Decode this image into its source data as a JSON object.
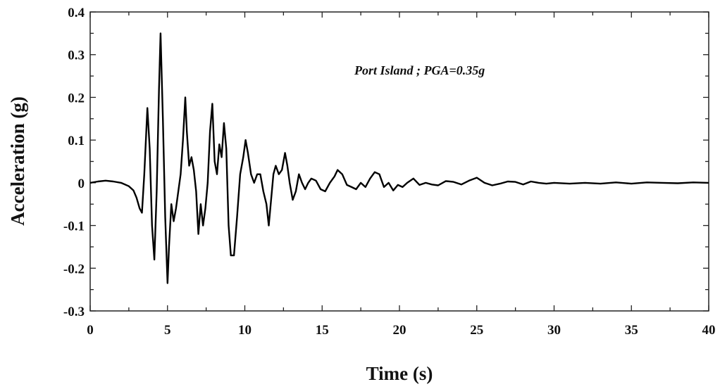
{
  "chart_data": {
    "type": "line",
    "title": "",
    "annotation": "Port Island ; PGA=0.35g",
    "xlabel": "Time (s)",
    "ylabel": "Acceleration (g)",
    "xlim": [
      0,
      40
    ],
    "ylim": [
      -0.3,
      0.4
    ],
    "xticks": [
      0,
      5,
      10,
      15,
      20,
      25,
      30,
      35,
      40
    ],
    "yticks": [
      -0.3,
      -0.2,
      -0.1,
      0,
      0.1,
      0.2,
      0.3,
      0.4
    ],
    "ytick_labels": [
      "-0.3",
      "-0.2",
      "-0.1",
      "0",
      "0.1",
      "0.2",
      "0.3",
      "0.4"
    ],
    "xtick_labels": [
      "0",
      "5",
      "10",
      "15",
      "20",
      "25",
      "30",
      "35",
      "40"
    ],
    "grid": false,
    "line_color": "#000000",
    "series": [
      {
        "x": [
          0,
          0.5,
          1.0,
          1.5,
          2.0,
          2.5,
          2.8,
          3.0,
          3.2,
          3.35,
          3.5,
          3.7,
          3.85,
          4.0,
          4.15,
          4.3,
          4.45,
          4.55,
          4.7,
          4.85,
          5.0,
          5.1,
          5.25,
          5.4,
          5.55,
          5.7,
          5.85,
          6.0,
          6.15,
          6.25,
          6.4,
          6.55,
          6.7,
          6.85,
          7.0,
          7.15,
          7.3,
          7.45,
          7.6,
          7.75,
          7.9,
          8.05,
          8.2,
          8.35,
          8.5,
          8.65,
          8.8,
          8.95,
          9.1,
          9.3,
          9.5,
          9.7,
          9.9,
          10.05,
          10.2,
          10.4,
          10.6,
          10.8,
          11.0,
          11.2,
          11.4,
          11.55,
          11.7,
          11.85,
          12.0,
          12.2,
          12.4,
          12.6,
          12.75,
          12.9,
          13.1,
          13.3,
          13.5,
          13.7,
          13.9,
          14.1,
          14.3,
          14.6,
          14.9,
          15.2,
          15.5,
          15.8,
          16.0,
          16.3,
          16.6,
          16.9,
          17.2,
          17.5,
          17.8,
          18.1,
          18.4,
          18.7,
          19.0,
          19.3,
          19.6,
          19.9,
          20.2,
          20.5,
          20.9,
          21.3,
          21.7,
          22.1,
          22.5,
          23.0,
          23.5,
          24.0,
          24.5,
          25.0,
          25.5,
          26.0,
          26.5,
          27.0,
          27.5,
          28.0,
          28.5,
          29.0,
          29.5,
          30.0,
          31.0,
          32.0,
          33.0,
          34.0,
          35.0,
          36.0,
          37.0,
          38.0,
          39.0,
          40.0
        ],
        "y": [
          0,
          0.003,
          0.005,
          0.003,
          0,
          -0.008,
          -0.018,
          -0.035,
          -0.06,
          -0.07,
          0.02,
          0.175,
          0.08,
          -0.1,
          -0.18,
          -0.02,
          0.22,
          0.35,
          0.15,
          -0.08,
          -0.235,
          -0.15,
          -0.05,
          -0.09,
          -0.06,
          -0.02,
          0.02,
          0.1,
          0.2,
          0.12,
          0.04,
          0.06,
          0.03,
          -0.02,
          -0.12,
          -0.05,
          -0.1,
          -0.06,
          0.0,
          0.12,
          0.185,
          0.05,
          0.02,
          0.09,
          0.06,
          0.14,
          0.08,
          -0.1,
          -0.17,
          -0.17,
          -0.08,
          0.02,
          0.06,
          0.1,
          0.07,
          0.02,
          0.0,
          0.02,
          0.02,
          -0.02,
          -0.05,
          -0.1,
          -0.04,
          0.02,
          0.04,
          0.02,
          0.03,
          0.07,
          0.04,
          0.0,
          -0.04,
          -0.02,
          0.02,
          0.0,
          -0.015,
          0.0,
          0.01,
          0.005,
          -0.015,
          -0.02,
          0.0,
          0.015,
          0.03,
          0.02,
          -0.005,
          -0.01,
          -0.015,
          0.0,
          -0.01,
          0.01,
          0.025,
          0.02,
          -0.01,
          0.0,
          -0.018,
          -0.005,
          -0.01,
          0.0,
          0.01,
          -0.005,
          0.0,
          -0.004,
          -0.006,
          0.004,
          0.002,
          -0.004,
          0.005,
          0.012,
          0.0,
          -0.006,
          -0.002,
          0.003,
          0.002,
          -0.004,
          0.003,
          0.0,
          -0.002,
          0.0,
          -0.002,
          0.0,
          -0.002,
          0.001,
          -0.002,
          0.001,
          0.0,
          -0.001,
          0.001,
          0.0
        ]
      }
    ]
  }
}
